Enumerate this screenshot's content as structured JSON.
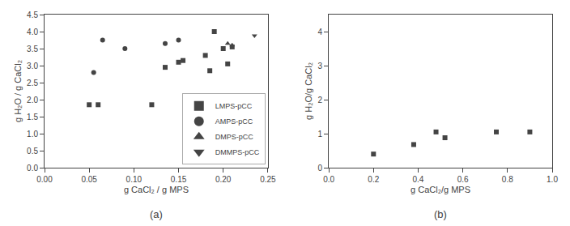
{
  "chart_data": [
    {
      "type": "scatter",
      "title": "(a)",
      "xlabel": "g CaCl₂ / g MPS",
      "ylabel": "g H₂O / g CaCl₂",
      "xlim": [
        0.0,
        0.25
      ],
      "ylim": [
        0.0,
        4.5
      ],
      "xticks": [
        {
          "value": 0.0,
          "label": "0.00"
        },
        0.05,
        {
          "value": 0.1,
          "label": "0.10"
        },
        0.15,
        {
          "value": 0.2,
          "label": "0.20"
        },
        0.25
      ],
      "yticks": [
        {
          "value": 0.0,
          "label": "0.0"
        },
        0.5,
        {
          "value": 1.0,
          "label": "1.0"
        },
        1.5,
        {
          "value": 2.0,
          "label": "2.0"
        },
        2.5,
        {
          "value": 3.0,
          "label": "3.0"
        },
        3.5,
        {
          "value": 4.0,
          "label": "4.0"
        },
        4.5
      ],
      "grid": false,
      "legend": "lower right",
      "series": [
        {
          "name": "LMPS-pCC",
          "color": "#444444",
          "marker": "square",
          "x": [
            0.05,
            0.06,
            0.12,
            0.135,
            0.15,
            0.155,
            0.18,
            0.185,
            0.19,
            0.2,
            0.205,
            0.21
          ],
          "values": [
            1.85,
            1.85,
            1.85,
            2.95,
            3.1,
            3.15,
            3.3,
            2.85,
            4.0,
            3.5,
            3.05,
            3.55
          ]
        },
        {
          "name": "AMPS-pCC",
          "color": "#444444",
          "marker": "circle",
          "x": [
            0.055,
            0.065,
            0.09,
            0.135,
            0.15
          ],
          "values": [
            2.8,
            3.75,
            3.5,
            3.65,
            3.75
          ]
        },
        {
          "name": "DMPS-pCC",
          "color": "#444444",
          "marker": "triangle-up",
          "x": [
            0.205,
            0.21
          ],
          "values": [
            3.65,
            3.6
          ]
        },
        {
          "name": "DMMPS-pCC",
          "color": "#444444",
          "marker": "triangle-down",
          "x": [
            0.235
          ],
          "values": [
            3.88
          ]
        }
      ]
    },
    {
      "type": "scatter",
      "title": "(b)",
      "xlabel": "g CaCl₂/g MPS",
      "ylabel": "g H₂O/g CaCl₂",
      "xlim": [
        0.0,
        1.0
      ],
      "ylim": [
        0.0,
        4.5
      ],
      "xticks": [
        {
          "value": 0.0,
          "label": "0.0"
        },
        0.2,
        0.4,
        0.6,
        0.8,
        {
          "value": 1.0,
          "label": "1.0"
        }
      ],
      "yticks": [
        0,
        1,
        2,
        3,
        4
      ],
      "grid": false,
      "series": [
        {
          "color": "#444444",
          "marker": "square",
          "x": [
            0.2,
            0.38,
            0.48,
            0.52,
            0.75,
            0.9
          ],
          "values": [
            0.4,
            0.68,
            1.05,
            0.88,
            1.05,
            1.05
          ]
        }
      ]
    }
  ]
}
